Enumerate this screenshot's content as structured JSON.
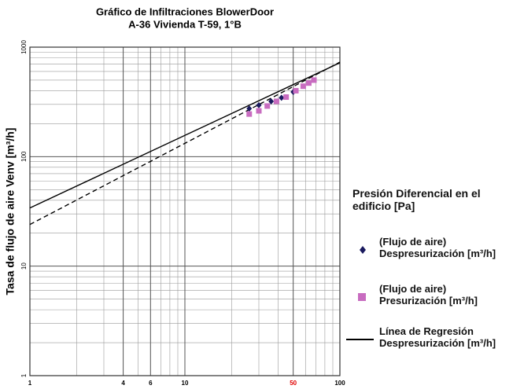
{
  "chart_data": {
    "type": "scatter",
    "title": "Gráfico de Infiltraciones BlowerDoor",
    "subtitle": "A-36 Vivienda T-59, 1°B",
    "y_label": "Tasa de flujo de aire Venv  [m³/h]",
    "legend_title": "Presión Diferencial en el edificio [Pa]",
    "log_x": true,
    "log_y": true,
    "grid": true,
    "minor_grid": true,
    "xlim": [
      1,
      100
    ],
    "ylim": [
      1,
      1000
    ],
    "xticks": [
      1,
      4,
      6,
      10,
      50,
      100
    ],
    "xtick_colors": [
      "#000000",
      "#000000",
      "#000000",
      "#000000",
      "#e00000",
      "#000000"
    ],
    "yticks": [
      1,
      10,
      100,
      1000
    ],
    "series": [
      {
        "name": "(Flujo de aire) Despresurización [m³/h]",
        "marker": "diamond",
        "color": "#1a1a5e",
        "x": [
          26,
          30,
          36,
          42,
          50
        ],
        "values": [
          275,
          295,
          320,
          345,
          390
        ]
      },
      {
        "name": "(Flujo de aire) Presurización [m³/h]",
        "marker": "square",
        "color": "#c86cc0",
        "x": [
          26,
          30,
          34,
          39,
          45,
          52,
          58,
          63,
          68
        ],
        "values": [
          245,
          262,
          290,
          320,
          350,
          400,
          440,
          470,
          500
        ]
      }
    ],
    "lines": [
      {
        "name": "Línea de Regresión Despresurización [m³/h]",
        "color": "#000000",
        "dash": "none",
        "x": [
          1,
          100
        ],
        "values": [
          34,
          720
        ]
      },
      {
        "color": "#000000",
        "dash": "6 4",
        "x": [
          1,
          100
        ],
        "values": [
          24,
          730
        ]
      }
    ]
  }
}
